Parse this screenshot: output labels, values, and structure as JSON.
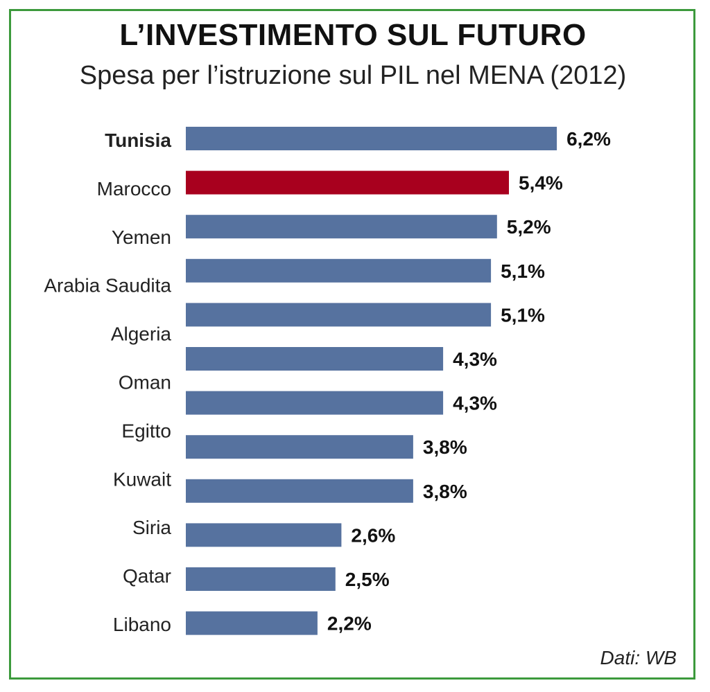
{
  "chart_data": {
    "type": "bar",
    "orientation": "horizontal",
    "title": "L’INVESTIMENTO SUL FUTURO",
    "subtitle": "Spesa per l’istruzione sul PIL nel MENA (2012)",
    "categories": [
      "Tunisia",
      "Marocco",
      "Yemen",
      "Arabia Saudita",
      "Algeria",
      "Oman",
      "Egitto",
      "Kuwait",
      "Kuwait_2",
      "Siria",
      "Qatar",
      "Libano"
    ],
    "bars": [
      {
        "category": "Tunisia",
        "value": 6.2,
        "label": "6,2%",
        "bold": true,
        "highlight": false
      },
      {
        "category": "Marocco",
        "value": 5.4,
        "label": "5,4%",
        "bold": false,
        "highlight": true
      },
      {
        "category": "Yemen",
        "value": 5.2,
        "label": "5,2%",
        "bold": false,
        "highlight": false
      },
      {
        "category": "Arabia Saudita",
        "value": 5.1,
        "label": "5,1%",
        "bold": false,
        "highlight": false
      },
      {
        "category": "Algeria",
        "value": 5.1,
        "label": "5,1%",
        "bold": false,
        "highlight": false
      },
      {
        "category": "Oman",
        "value": 4.3,
        "label": "4,3%",
        "bold": false,
        "highlight": false
      },
      {
        "category": "Egitto",
        "value": 4.3,
        "label": "4,3%",
        "bold": false,
        "highlight": false
      },
      {
        "category": "Kuwait",
        "value": 3.8,
        "label": "3,8%",
        "bold": false,
        "highlight": false
      },
      {
        "category": "",
        "value": 3.8,
        "label": "3,8%",
        "bold": false,
        "highlight": false
      },
      {
        "category": "Siria",
        "value": 2.6,
        "label": "2,6%",
        "bold": false,
        "highlight": false
      },
      {
        "category": "Qatar",
        "value": 2.5,
        "label": "2,5%",
        "bold": false,
        "highlight": false
      },
      {
        "category": "Libano",
        "value": 2.2,
        "label": "2,2%",
        "bold": false,
        "highlight": false
      }
    ],
    "colors": {
      "bar": "#56729f",
      "highlight": "#a8001e",
      "border": "#3c9a3c"
    },
    "source": "Dati: WB",
    "grid": false,
    "legend": "none"
  }
}
